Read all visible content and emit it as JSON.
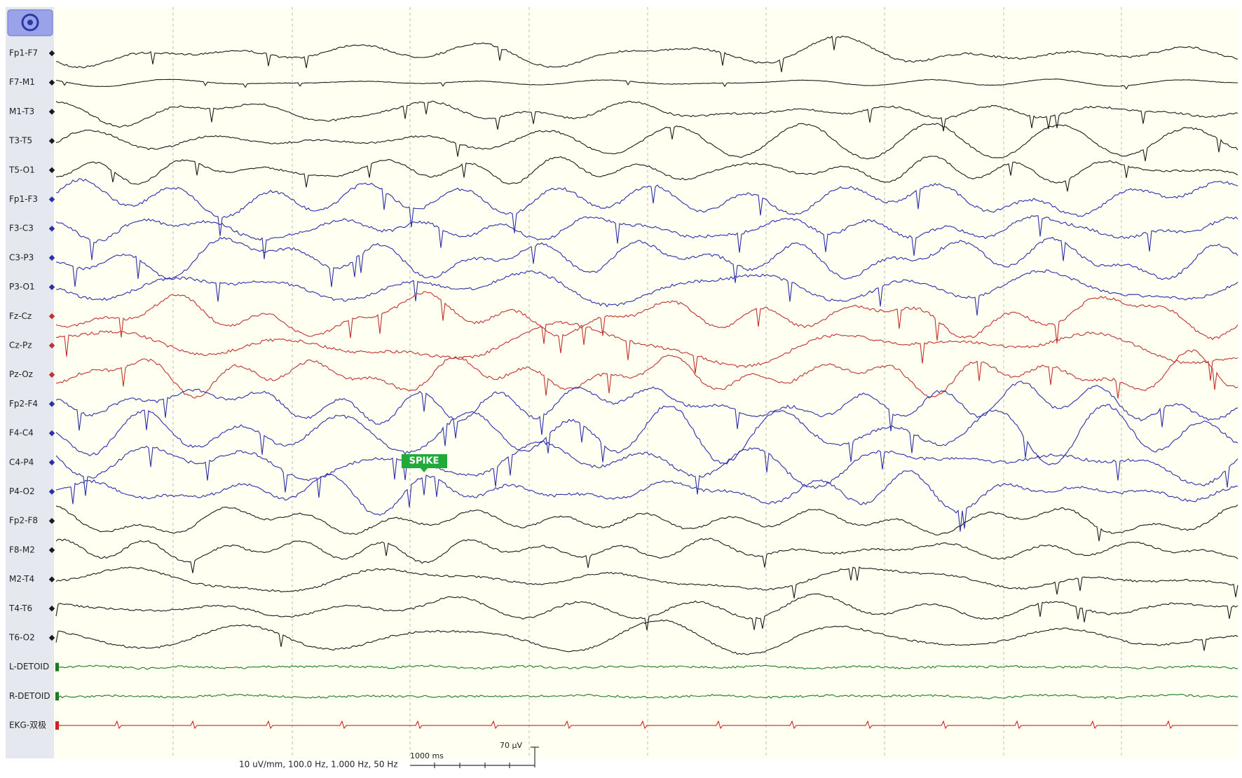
{
  "channels": [
    {
      "label": "Fp1-F7",
      "color": "#1a1a1a"
    },
    {
      "label": "F7-M1",
      "color": "#1a1a1a"
    },
    {
      "label": "M1-T3",
      "color": "#1a1a1a"
    },
    {
      "label": "T3-T5",
      "color": "#1a1a1a"
    },
    {
      "label": "T5-O1",
      "color": "#1a1a1a"
    },
    {
      "label": "Fp1-F3",
      "color": "#2b2fa8"
    },
    {
      "label": "F3-C3",
      "color": "#2b2fa8"
    },
    {
      "label": "C3-P3",
      "color": "#2b2fa8"
    },
    {
      "label": "P3-O1",
      "color": "#2b2fa8"
    },
    {
      "label": "Fz-Cz",
      "color": "#c0322c"
    },
    {
      "label": "Cz-Pz",
      "color": "#c0322c"
    },
    {
      "label": "Pz-Oz",
      "color": "#c0322c"
    },
    {
      "label": "Fp2-F4",
      "color": "#2b2fa8"
    },
    {
      "label": "F4-C4",
      "color": "#2b2fa8"
    },
    {
      "label": "C4-P4",
      "color": "#2b2fa8"
    },
    {
      "label": "P4-O2",
      "color": "#2b2fa8"
    },
    {
      "label": "Fp2-F8",
      "color": "#1a1a1a"
    },
    {
      "label": "F8-M2",
      "color": "#1a1a1a"
    },
    {
      "label": "M2-T4",
      "color": "#1a1a1a"
    },
    {
      "label": "T4-T6",
      "color": "#1a1a1a"
    },
    {
      "label": "T6-O2",
      "color": "#1a1a1a"
    },
    {
      "label": "L-DETOID",
      "color": "#1f7a1f"
    },
    {
      "label": "R-DETOID",
      "color": "#1f7a1f"
    },
    {
      "label": "EKG-双极",
      "color": "#d02020"
    }
  ],
  "annotation": "SPIKE",
  "footer": "10 uV/mm, 100.0 Hz, 1.000 Hz, 50 Hz",
  "time_scale": "1000 ms",
  "amplitude_scale": "70 µV"
}
